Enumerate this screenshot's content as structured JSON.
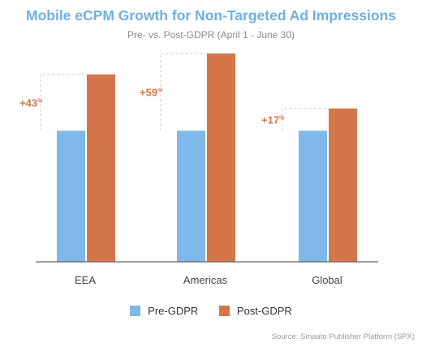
{
  "chart_data": {
    "type": "bar",
    "title": "Mobile eCPM Growth for Non-Targeted Ad Impressions",
    "subtitle": "Pre- vs. Post-GDPR (April 1 - June 30)",
    "categories": [
      "EEA",
      "Americas",
      "Global"
    ],
    "series": [
      {
        "name": "Pre-GDPR",
        "values": [
          100,
          100,
          100
        ],
        "color": "#7db8e8"
      },
      {
        "name": "Post-GDPR",
        "values": [
          143,
          159,
          117
        ],
        "color": "#d4764a"
      }
    ],
    "growth_labels": [
      {
        "category": "EEA",
        "main": "+43",
        "sup": "%"
      },
      {
        "category": "Americas",
        "main": "+59",
        "sup": "%"
      },
      {
        "category": "Global",
        "main": "+17",
        "sup": "%"
      }
    ],
    "ylim": [
      0,
      175
    ],
    "xlabel": "",
    "ylabel": "",
    "grid": false,
    "legend_position": "bottom"
  },
  "source_text": "Source: Smaato Publisher Platform (SPX)",
  "colors": {
    "title": "#6fb0e2",
    "growth_label": "#d4764a",
    "axis": "#666666",
    "dashed_box": "#c8c8c8"
  }
}
